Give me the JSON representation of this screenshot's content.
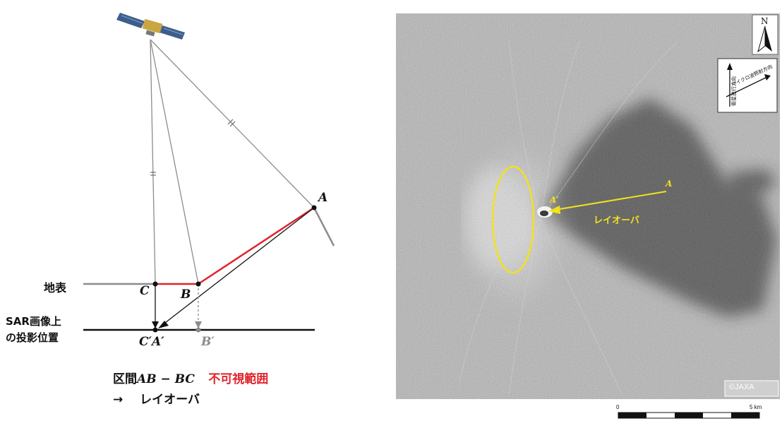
{
  "diagram": {
    "point_a": "A",
    "point_b": "B",
    "point_c": "C",
    "ground_label": "地表",
    "sar_label_line1": "SAR画像上",
    "sar_label_line2": "の投影位置",
    "proj_ca": "C′A′",
    "proj_b": "B′",
    "legend_prefix": "区間",
    "legend_math": "AB − BC",
    "legend_red": "不可視範囲",
    "legend_arrow": "→",
    "legend_term": "レイオーバ",
    "colors": {
      "red": "#e0242c",
      "gray": "#8c8c8c",
      "black": "#111111"
    }
  },
  "sar_image": {
    "north": "N",
    "orient_along_track": "衛星進行方向",
    "orient_look": "マイクロ波照射方向",
    "point_a": "A",
    "point_a_prime": "A′",
    "layover_label": "レイオーバ",
    "copyright": "©JAXA",
    "annotation_color": "#f2e21c"
  },
  "scale_bar": {
    "start": "0",
    "end": "5 km"
  }
}
